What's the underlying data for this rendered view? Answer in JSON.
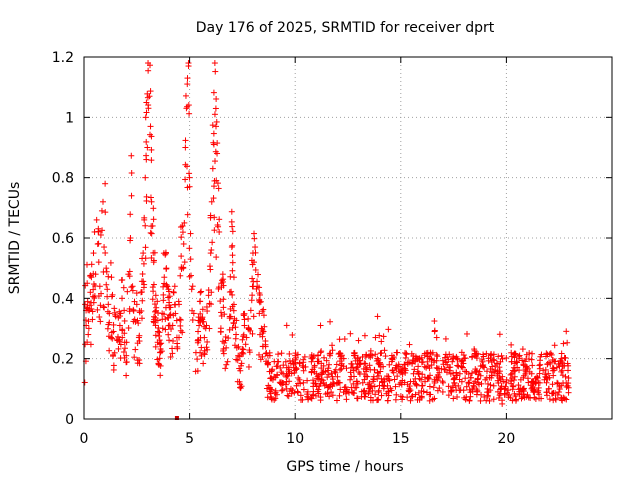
{
  "chart_data": {
    "type": "scatter",
    "title": "Day 176 of 2025, SRMTID for receiver dprt",
    "xlabel": "GPS time / hours",
    "ylabel": "SRMTID / TECUs",
    "xlim": [
      0,
      25
    ],
    "ylim": [
      0,
      1.2
    ],
    "xticks": [
      0,
      5,
      10,
      15,
      20
    ],
    "yticks": [
      0,
      0.2,
      0.4,
      0.6,
      0.8,
      1,
      1.2
    ],
    "xtick_labels": [
      "0",
      "5",
      "10",
      "15",
      "20"
    ],
    "ytick_labels": [
      "0",
      "0.2",
      "0.4",
      "0.6",
      "0.8",
      "1",
      "1.2"
    ],
    "grid": true,
    "marker": "+",
    "color": "#ff0000",
    "outlier_marker": {
      "x": 4.4,
      "y": 0.0,
      "color": "#cc0000"
    },
    "series": [
      {
        "name": "dprt",
        "points": [
          [
            0.05,
            0.38
          ],
          [
            0.1,
            0.31
          ],
          [
            0.15,
            0.45
          ],
          [
            0.2,
            0.28
          ],
          [
            0.25,
            0.36
          ],
          [
            0.3,
            0.42
          ],
          [
            0.35,
            0.47
          ],
          [
            0.4,
            0.33
          ],
          [
            0.45,
            0.55
          ],
          [
            0.5,
            0.62
          ],
          [
            0.55,
            0.48
          ],
          [
            0.6,
            0.66
          ],
          [
            0.65,
            0.58
          ],
          [
            0.7,
            0.52
          ],
          [
            0.75,
            0.44
          ],
          [
            0.8,
            0.61
          ],
          [
            0.85,
            0.69
          ],
          [
            0.9,
            0.72
          ],
          [
            0.95,
            0.57
          ],
          [
            1.0,
            0.78
          ],
          [
            1.05,
            0.5
          ],
          [
            1.1,
            0.43
          ],
          [
            1.15,
            0.38
          ],
          [
            1.2,
            0.35
          ],
          [
            1.3,
            0.47
          ],
          [
            1.4,
            0.29
          ],
          [
            1.5,
            0.34
          ],
          [
            1.6,
            0.26
          ],
          [
            1.7,
            0.31
          ],
          [
            1.8,
            0.4
          ],
          [
            1.9,
            0.36
          ],
          [
            2.0,
            0.21
          ],
          [
            2.1,
            0.48
          ],
          [
            2.2,
            0.6
          ],
          [
            2.25,
            0.74
          ],
          [
            2.3,
            0.44
          ],
          [
            2.4,
            0.33
          ],
          [
            2.5,
            0.38
          ],
          [
            2.6,
            0.27
          ],
          [
            2.7,
            0.42
          ],
          [
            2.8,
            0.55
          ],
          [
            2.85,
            0.66
          ],
          [
            2.9,
            0.8
          ],
          [
            2.95,
            0.86
          ],
          [
            3.0,
            0.9
          ],
          [
            3.05,
            1.03
          ],
          [
            3.1,
            1.07
          ],
          [
            3.15,
            0.97
          ],
          [
            3.2,
            0.72
          ],
          [
            3.25,
            0.64
          ],
          [
            3.3,
            0.52
          ],
          [
            3.4,
            0.41
          ],
          [
            3.5,
            0.29
          ],
          [
            3.6,
            0.22
          ],
          [
            3.7,
            0.35
          ],
          [
            3.8,
            0.47
          ],
          [
            3.9,
            0.5
          ],
          [
            4.0,
            0.43
          ],
          [
            4.1,
            0.37
          ],
          [
            4.2,
            0.31
          ],
          [
            4.3,
            0.44
          ],
          [
            4.4,
            0.27
          ],
          [
            4.5,
            0.38
          ],
          [
            4.6,
            0.54
          ],
          [
            4.7,
            0.5
          ],
          [
            4.75,
            0.65
          ],
          [
            4.8,
            0.9
          ],
          [
            4.85,
            1.03
          ],
          [
            4.9,
            1.13
          ],
          [
            4.95,
            1.17
          ],
          [
            5.0,
            0.77
          ],
          [
            5.05,
            0.53
          ],
          [
            5.1,
            0.43
          ],
          [
            5.2,
            0.35
          ],
          [
            5.3,
            0.22
          ],
          [
            5.4,
            0.29
          ],
          [
            5.5,
            0.39
          ],
          [
            5.6,
            0.33
          ],
          [
            5.7,
            0.27
          ],
          [
            5.8,
            0.31
          ],
          [
            5.9,
            0.41
          ],
          [
            6.0,
            0.55
          ],
          [
            6.05,
            0.72
          ],
          [
            6.1,
            0.83
          ],
          [
            6.15,
            0.91
          ],
          [
            6.2,
            1.01
          ],
          [
            6.25,
            0.97
          ],
          [
            6.3,
            0.88
          ],
          [
            6.4,
            0.62
          ],
          [
            6.5,
            0.45
          ],
          [
            6.6,
            0.37
          ],
          [
            6.7,
            0.26
          ],
          [
            6.8,
            0.19
          ],
          [
            6.9,
            0.34
          ],
          [
            7.0,
            0.57
          ],
          [
            7.1,
            0.47
          ],
          [
            7.2,
            0.28
          ],
          [
            7.3,
            0.21
          ],
          [
            7.4,
            0.16
          ],
          [
            7.5,
            0.22
          ],
          [
            7.6,
            0.33
          ],
          [
            7.7,
            0.27
          ],
          [
            7.8,
            0.3
          ],
          [
            7.9,
            0.36
          ],
          [
            8.0,
            0.55
          ],
          [
            8.05,
            0.52
          ],
          [
            8.1,
            0.57
          ],
          [
            8.2,
            0.44
          ],
          [
            8.3,
            0.35
          ],
          [
            8.4,
            0.3
          ],
          [
            8.5,
            0.29
          ],
          [
            8.6,
            0.24
          ],
          [
            8.7,
            0.18
          ],
          [
            8.8,
            0.21
          ],
          [
            8.9,
            0.16
          ],
          [
            9.0,
            0.14
          ],
          [
            9.2,
            0.19
          ],
          [
            9.4,
            0.12
          ],
          [
            9.6,
            0.17
          ],
          [
            9.8,
            0.1
          ],
          [
            10.0,
            0.21
          ],
          [
            10.2,
            0.13
          ],
          [
            10.4,
            0.16
          ],
          [
            10.6,
            0.09
          ],
          [
            10.8,
            0.2
          ],
          [
            11.0,
            0.15
          ],
          [
            11.2,
            0.31
          ],
          [
            11.4,
            0.11
          ],
          [
            11.6,
            0.18
          ],
          [
            11.8,
            0.12
          ],
          [
            12.0,
            0.14
          ],
          [
            12.2,
            0.2
          ],
          [
            12.4,
            0.09
          ],
          [
            12.6,
            0.13
          ],
          [
            12.8,
            0.21
          ],
          [
            13.0,
            0.26
          ],
          [
            13.2,
            0.12
          ],
          [
            13.4,
            0.17
          ],
          [
            13.6,
            0.11
          ],
          [
            13.8,
            0.27
          ],
          [
            13.9,
            0.34
          ],
          [
            14.0,
            0.18
          ],
          [
            14.2,
            0.13
          ],
          [
            14.4,
            0.09
          ],
          [
            14.6,
            0.16
          ],
          [
            14.8,
            0.22
          ],
          [
            15.0,
            0.12
          ],
          [
            15.2,
            0.18
          ],
          [
            15.4,
            0.1
          ],
          [
            15.6,
            0.15
          ],
          [
            15.8,
            0.2
          ],
          [
            16.0,
            0.11
          ],
          [
            16.2,
            0.17
          ],
          [
            16.4,
            0.22
          ],
          [
            16.6,
            0.29
          ],
          [
            16.7,
            0.27
          ],
          [
            16.8,
            0.14
          ],
          [
            17.0,
            0.12
          ],
          [
            17.2,
            0.18
          ],
          [
            17.4,
            0.09
          ],
          [
            17.6,
            0.11
          ],
          [
            17.8,
            0.15
          ],
          [
            18.0,
            0.07
          ],
          [
            18.2,
            0.12
          ],
          [
            18.4,
            0.1
          ],
          [
            18.6,
            0.16
          ],
          [
            18.8,
            0.08
          ],
          [
            19.0,
            0.13
          ],
          [
            19.2,
            0.06
          ],
          [
            19.4,
            0.11
          ],
          [
            19.6,
            0.09
          ],
          [
            19.8,
            0.05
          ],
          [
            20.0,
            0.12
          ],
          [
            20.2,
            0.07
          ],
          [
            20.4,
            0.14
          ],
          [
            20.6,
            0.2
          ],
          [
            20.8,
            0.1
          ],
          [
            21.0,
            0.08
          ],
          [
            21.2,
            0.15
          ],
          [
            21.4,
            0.12
          ],
          [
            21.6,
            0.18
          ],
          [
            21.8,
            0.13
          ],
          [
            22.0,
            0.1
          ],
          [
            22.2,
            0.16
          ],
          [
            22.4,
            0.12
          ],
          [
            22.6,
            0.2
          ],
          [
            22.7,
            0.25
          ],
          [
            22.8,
            0.14
          ],
          [
            22.9,
            0.11
          ]
        ]
      }
    ]
  }
}
